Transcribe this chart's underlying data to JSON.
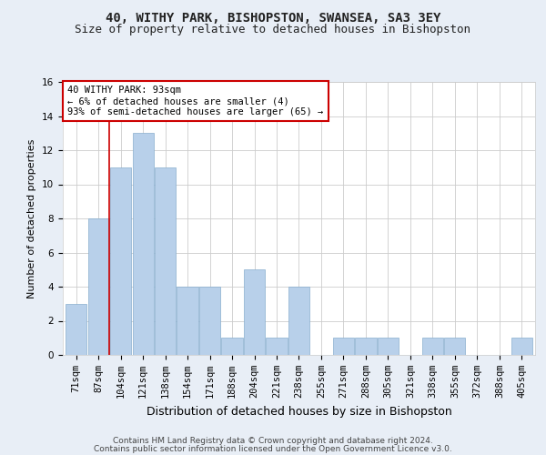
{
  "title1": "40, WITHY PARK, BISHOPSTON, SWANSEA, SA3 3EY",
  "title2": "Size of property relative to detached houses in Bishopston",
  "xlabel": "Distribution of detached houses by size in Bishopston",
  "ylabel": "Number of detached properties",
  "categories": [
    "71sqm",
    "87sqm",
    "104sqm",
    "121sqm",
    "138sqm",
    "154sqm",
    "171sqm",
    "188sqm",
    "204sqm",
    "221sqm",
    "238sqm",
    "255sqm",
    "271sqm",
    "288sqm",
    "305sqm",
    "321sqm",
    "338sqm",
    "355sqm",
    "372sqm",
    "388sqm",
    "405sqm"
  ],
  "values": [
    3,
    8,
    11,
    13,
    11,
    4,
    4,
    1,
    5,
    1,
    4,
    0,
    1,
    1,
    1,
    0,
    1,
    1,
    0,
    0,
    1
  ],
  "bar_color": "#b8d0ea",
  "bar_edge_color": "#88aece",
  "vline_color": "#cc0000",
  "vline_x_index": 1.5,
  "annotation_text": "40 WITHY PARK: 93sqm\n← 6% of detached houses are smaller (4)\n93% of semi-detached houses are larger (65) →",
  "annotation_box_color": "#ffffff",
  "annotation_box_edge": "#cc0000",
  "ylim": [
    0,
    16
  ],
  "yticks": [
    0,
    2,
    4,
    6,
    8,
    10,
    12,
    14,
    16
  ],
  "grid_color": "#cccccc",
  "background_color": "#e8eef6",
  "plot_bg_color": "#ffffff",
  "footer1": "Contains HM Land Registry data © Crown copyright and database right 2024.",
  "footer2": "Contains public sector information licensed under the Open Government Licence v3.0.",
  "title1_fontsize": 10,
  "title2_fontsize": 9,
  "xlabel_fontsize": 9,
  "ylabel_fontsize": 8,
  "tick_fontsize": 7.5,
  "annotation_fontsize": 7.5,
  "footer_fontsize": 6.5
}
